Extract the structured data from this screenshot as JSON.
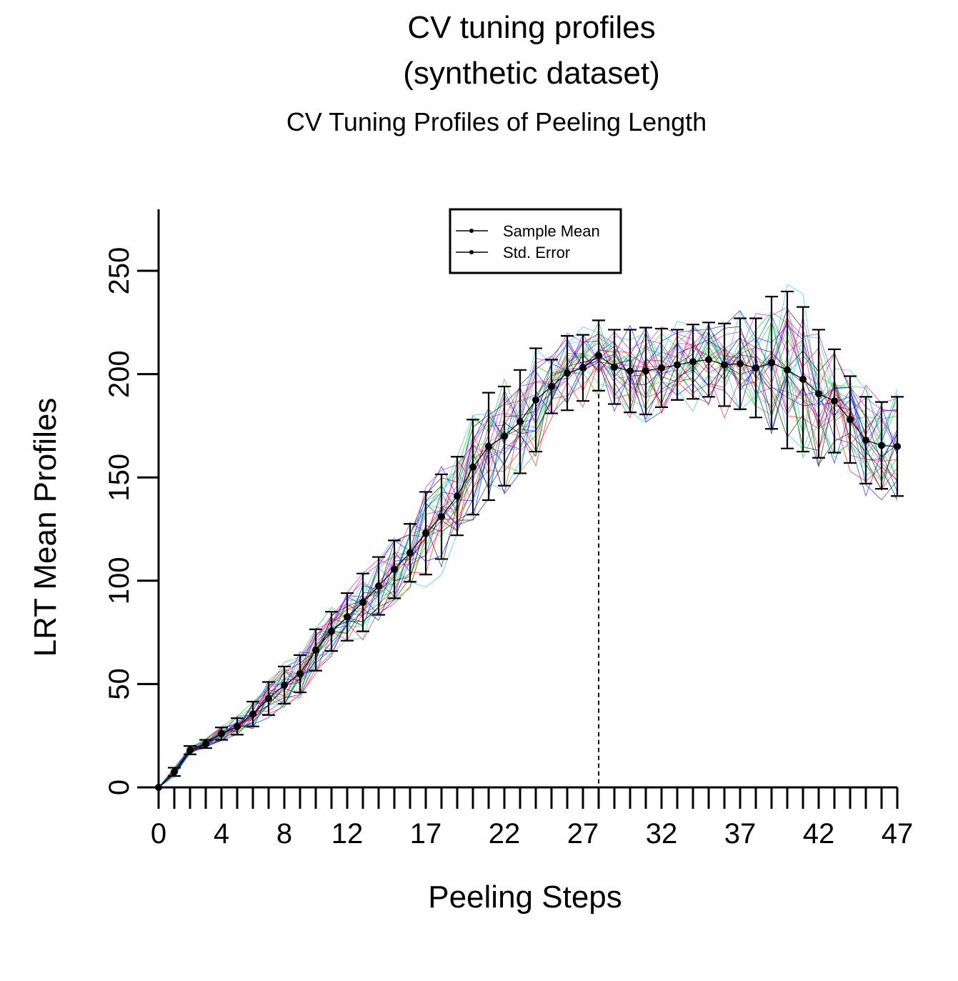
{
  "titles": {
    "main_line1": "CV tuning profiles",
    "main_line2": "(synthetic dataset)",
    "sub": "CV Tuning Profiles of Peeling Length"
  },
  "chart_data": {
    "type": "line",
    "xlabel": "Peeling Steps",
    "ylabel": "LRT Mean Profiles",
    "xlim": [
      0,
      47
    ],
    "ylim": [
      0,
      250
    ],
    "x_tick_labels": [
      "0",
      "4",
      "8",
      "12",
      "17",
      "22",
      "27",
      "32",
      "37",
      "42",
      "47"
    ],
    "x_tick_positions": [
      0,
      4,
      8,
      12,
      17,
      22,
      27,
      32,
      37,
      42,
      47
    ],
    "y_tick_labels": [
      "0",
      "50",
      "100",
      "150",
      "200",
      "250"
    ],
    "y_tick_positions": [
      0,
      50,
      100,
      150,
      200,
      250
    ],
    "grid": false,
    "legend_position": "top-center",
    "legend": [
      "Sample Mean",
      "Std. Error"
    ],
    "optimal_step": 28,
    "steps": [
      0,
      1,
      2,
      3,
      4,
      5,
      6,
      7,
      8,
      9,
      10,
      11,
      12,
      13,
      14,
      15,
      16,
      17,
      18,
      19,
      20,
      21,
      22,
      23,
      24,
      25,
      26,
      27,
      28,
      29,
      30,
      31,
      32,
      33,
      34,
      35,
      36,
      37,
      38,
      39,
      40,
      41,
      42,
      43,
      44,
      45,
      46,
      47
    ],
    "mean": [
      0,
      7.5,
      18,
      21,
      26,
      29.5,
      35.5,
      43,
      49.5,
      55,
      66.5,
      75.5,
      82.5,
      89.5,
      97.5,
      105.5,
      113.5,
      123,
      131,
      141,
      155,
      165,
      170,
      177,
      187.5,
      194,
      200.5,
      203,
      209,
      203.5,
      201.5,
      201.5,
      203,
      204.5,
      206,
      207,
      204.5,
      205,
      203,
      205.5,
      202,
      197.5,
      190.5,
      187,
      178,
      168,
      165.5,
      165
    ],
    "std_error": [
      0,
      2,
      2,
      2,
      3,
      4,
      6,
      8,
      9,
      9,
      10,
      9.5,
      11.5,
      14,
      14,
      14,
      14,
      20,
      20.5,
      19,
      23,
      26,
      24,
      25,
      25,
      13,
      18,
      16,
      17,
      18,
      20,
      21,
      19,
      17,
      18,
      18,
      20,
      22,
      24,
      32,
      38,
      35,
      31,
      25,
      21,
      21,
      21,
      24
    ],
    "series_colors": [
      "#000000",
      "#ff0000",
      "#00cc00",
      "#0000ff",
      "#00cccc",
      "#cc00cc"
    ]
  }
}
